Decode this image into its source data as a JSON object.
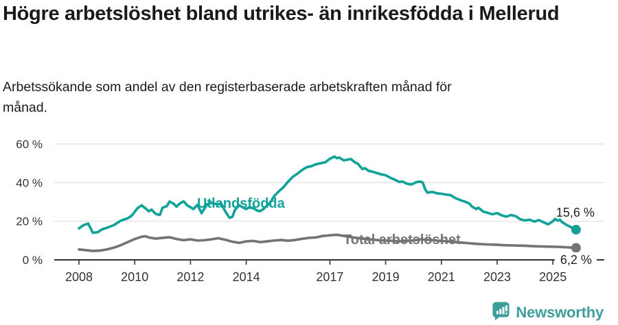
{
  "chart_data": {
    "type": "line",
    "title": "Högre arbetslöshet bland utrikes- än inrikesfödda i Mellerud",
    "subtitle": "Arbetssökande som andel av den registerbaserade arbetskraften månad för månad.",
    "unit": "%",
    "decimal_style": "comma",
    "x_axis": {
      "tick_years": [
        2008,
        2010,
        2012,
        2014,
        2017,
        2019,
        2021,
        2023,
        2025
      ],
      "range": [
        2008,
        2025.9
      ],
      "grid": false
    },
    "y_axis": {
      "ticks": [
        0,
        20,
        40,
        60
      ],
      "tick_suffix": " %",
      "range": [
        0,
        65
      ],
      "grid": true
    },
    "legend": "inline-labels",
    "series": [
      {
        "name": "Utlandsfödda",
        "color": "#13a29a",
        "end_value": 15.6,
        "end_label": "15,6 %",
        "points": [
          [
            2008.0,
            16.3
          ],
          [
            2008.17,
            18.0
          ],
          [
            2008.33,
            18.8
          ],
          [
            2008.5,
            14.0
          ],
          [
            2008.67,
            14.3
          ],
          [
            2008.83,
            15.8
          ],
          [
            2009.0,
            16.6
          ],
          [
            2009.25,
            18.0
          ],
          [
            2009.5,
            20.3
          ],
          [
            2009.75,
            21.5
          ],
          [
            2009.9,
            23.0
          ],
          [
            2010.1,
            26.8
          ],
          [
            2010.25,
            28.2
          ],
          [
            2010.4,
            26.5
          ],
          [
            2010.5,
            25.2
          ],
          [
            2010.6,
            26.0
          ],
          [
            2010.75,
            23.8
          ],
          [
            2010.9,
            23.2
          ],
          [
            2011.0,
            27.0
          ],
          [
            2011.15,
            27.8
          ],
          [
            2011.25,
            30.2
          ],
          [
            2011.4,
            29.0
          ],
          [
            2011.5,
            27.5
          ],
          [
            2011.6,
            29.0
          ],
          [
            2011.75,
            30.3
          ],
          [
            2011.9,
            28.0
          ],
          [
            2012.0,
            27.3
          ],
          [
            2012.1,
            26.3
          ],
          [
            2012.25,
            28.5
          ],
          [
            2012.4,
            24.2
          ],
          [
            2012.5,
            26.5
          ],
          [
            2012.6,
            28.8
          ],
          [
            2012.75,
            29.5
          ],
          [
            2012.9,
            29.0
          ],
          [
            2013.0,
            28.8
          ],
          [
            2013.1,
            29.3
          ],
          [
            2013.25,
            25.0
          ],
          [
            2013.4,
            21.8
          ],
          [
            2013.5,
            22.3
          ],
          [
            2013.6,
            26.0
          ],
          [
            2013.75,
            28.3
          ],
          [
            2013.9,
            27.0
          ],
          [
            2014.0,
            26.3
          ],
          [
            2014.1,
            27.2
          ],
          [
            2014.25,
            26.8
          ],
          [
            2014.4,
            25.5
          ],
          [
            2014.5,
            25.2
          ],
          [
            2014.6,
            26.2
          ],
          [
            2014.75,
            28.0
          ],
          [
            2014.9,
            30.5
          ],
          [
            2015.0,
            33.0
          ],
          [
            2015.17,
            35.5
          ],
          [
            2015.33,
            37.5
          ],
          [
            2015.5,
            40.5
          ],
          [
            2015.67,
            43.0
          ],
          [
            2015.83,
            44.5
          ],
          [
            2016.0,
            46.5
          ],
          [
            2016.17,
            48.0
          ],
          [
            2016.33,
            48.5
          ],
          [
            2016.5,
            49.5
          ],
          [
            2016.67,
            50.0
          ],
          [
            2016.83,
            50.5
          ],
          [
            2017.0,
            52.3
          ],
          [
            2017.17,
            53.5
          ],
          [
            2017.25,
            52.6
          ],
          [
            2017.33,
            53.0
          ],
          [
            2017.5,
            51.5
          ],
          [
            2017.6,
            51.8
          ],
          [
            2017.75,
            52.2
          ],
          [
            2017.9,
            50.5
          ],
          [
            2018.0,
            49.8
          ],
          [
            2018.17,
            47.0
          ],
          [
            2018.25,
            47.5
          ],
          [
            2018.4,
            46.0
          ],
          [
            2018.5,
            45.8
          ],
          [
            2018.67,
            45.0
          ],
          [
            2018.83,
            44.3
          ],
          [
            2019.0,
            43.8
          ],
          [
            2019.17,
            42.5
          ],
          [
            2019.33,
            41.5
          ],
          [
            2019.5,
            40.3
          ],
          [
            2019.6,
            40.6
          ],
          [
            2019.75,
            39.5
          ],
          [
            2019.9,
            39.0
          ],
          [
            2020.0,
            39.5
          ],
          [
            2020.1,
            40.3
          ],
          [
            2020.25,
            40.5
          ],
          [
            2020.33,
            40.0
          ],
          [
            2020.42,
            36.5
          ],
          [
            2020.5,
            34.8
          ],
          [
            2020.67,
            35.2
          ],
          [
            2020.83,
            34.5
          ],
          [
            2021.0,
            34.2
          ],
          [
            2021.17,
            33.8
          ],
          [
            2021.33,
            33.5
          ],
          [
            2021.5,
            32.0
          ],
          [
            2021.67,
            31.0
          ],
          [
            2021.83,
            30.2
          ],
          [
            2022.0,
            29.2
          ],
          [
            2022.1,
            27.5
          ],
          [
            2022.25,
            26.3
          ],
          [
            2022.33,
            27.0
          ],
          [
            2022.5,
            25.0
          ],
          [
            2022.67,
            24.3
          ],
          [
            2022.83,
            23.6
          ],
          [
            2023.0,
            24.2
          ],
          [
            2023.17,
            23.0
          ],
          [
            2023.33,
            22.4
          ],
          [
            2023.5,
            23.2
          ],
          [
            2023.67,
            22.6
          ],
          [
            2023.83,
            21.0
          ],
          [
            2024.0,
            20.4
          ],
          [
            2024.17,
            20.8
          ],
          [
            2024.33,
            19.8
          ],
          [
            2024.5,
            20.6
          ],
          [
            2024.67,
            19.4
          ],
          [
            2024.83,
            18.4
          ],
          [
            2025.0,
            20.0
          ],
          [
            2025.08,
            21.2
          ],
          [
            2025.17,
            20.3
          ],
          [
            2025.25,
            20.8
          ],
          [
            2025.33,
            19.5
          ],
          [
            2025.5,
            18.0
          ],
          [
            2025.67,
            16.8
          ],
          [
            2025.83,
            15.6
          ]
        ]
      },
      {
        "name": "Total arbetslöshet",
        "color": "#747474",
        "end_value": 6.2,
        "end_label": "6,2 %",
        "points": [
          [
            2008.0,
            5.4
          ],
          [
            2008.25,
            5.0
          ],
          [
            2008.5,
            4.6
          ],
          [
            2008.75,
            4.8
          ],
          [
            2009.0,
            5.4
          ],
          [
            2009.25,
            6.3
          ],
          [
            2009.5,
            7.6
          ],
          [
            2009.75,
            9.2
          ],
          [
            2010.0,
            10.8
          ],
          [
            2010.25,
            12.0
          ],
          [
            2010.4,
            12.2
          ],
          [
            2010.5,
            11.6
          ],
          [
            2010.75,
            11.0
          ],
          [
            2011.0,
            11.4
          ],
          [
            2011.25,
            11.7
          ],
          [
            2011.5,
            10.8
          ],
          [
            2011.75,
            10.2
          ],
          [
            2012.0,
            10.6
          ],
          [
            2012.25,
            10.0
          ],
          [
            2012.5,
            10.2
          ],
          [
            2012.75,
            10.6
          ],
          [
            2013.0,
            11.2
          ],
          [
            2013.25,
            10.4
          ],
          [
            2013.5,
            9.4
          ],
          [
            2013.75,
            8.8
          ],
          [
            2014.0,
            9.6
          ],
          [
            2014.25,
            9.8
          ],
          [
            2014.5,
            9.2
          ],
          [
            2014.75,
            9.6
          ],
          [
            2015.0,
            10.0
          ],
          [
            2015.25,
            10.3
          ],
          [
            2015.5,
            9.9
          ],
          [
            2015.75,
            10.3
          ],
          [
            2016.0,
            10.9
          ],
          [
            2016.25,
            11.4
          ],
          [
            2016.5,
            11.6
          ],
          [
            2016.75,
            12.4
          ],
          [
            2017.0,
            12.7
          ],
          [
            2017.25,
            13.0
          ],
          [
            2017.5,
            12.4
          ],
          [
            2017.75,
            11.8
          ],
          [
            2018.0,
            11.3
          ],
          [
            2018.25,
            10.8
          ],
          [
            2018.5,
            10.5
          ],
          [
            2018.75,
            10.2
          ],
          [
            2019.0,
            10.0
          ],
          [
            2019.25,
            9.8
          ],
          [
            2019.5,
            9.6
          ],
          [
            2019.75,
            9.8
          ],
          [
            2020.0,
            10.0
          ],
          [
            2020.25,
            10.6
          ],
          [
            2020.5,
            10.4
          ],
          [
            2020.75,
            10.1
          ],
          [
            2021.0,
            9.8
          ],
          [
            2021.25,
            9.5
          ],
          [
            2021.5,
            9.2
          ],
          [
            2021.75,
            8.9
          ],
          [
            2022.0,
            8.6
          ],
          [
            2022.25,
            8.3
          ],
          [
            2022.5,
            8.1
          ],
          [
            2022.75,
            7.9
          ],
          [
            2023.0,
            7.8
          ],
          [
            2023.25,
            7.6
          ],
          [
            2023.5,
            7.5
          ],
          [
            2023.75,
            7.4
          ],
          [
            2024.0,
            7.3
          ],
          [
            2024.25,
            7.1
          ],
          [
            2024.5,
            7.0
          ],
          [
            2024.75,
            6.9
          ],
          [
            2025.0,
            6.8
          ],
          [
            2025.25,
            6.7
          ],
          [
            2025.5,
            6.5
          ],
          [
            2025.83,
            6.2
          ]
        ]
      }
    ]
  },
  "footer": {
    "brand": "Newsworthy",
    "brand_color": "#3d9e9b",
    "logo_icon": "newsworthy-speech-bubble-chart-icon"
  },
  "colors": {
    "background": "#ffffff",
    "title_text": "#1a1a1a",
    "axis_line": "#333333",
    "axis_text": "#333333",
    "gridline": "#e2e2e2",
    "series_teal": "#13a29a",
    "series_gray": "#747474"
  }
}
